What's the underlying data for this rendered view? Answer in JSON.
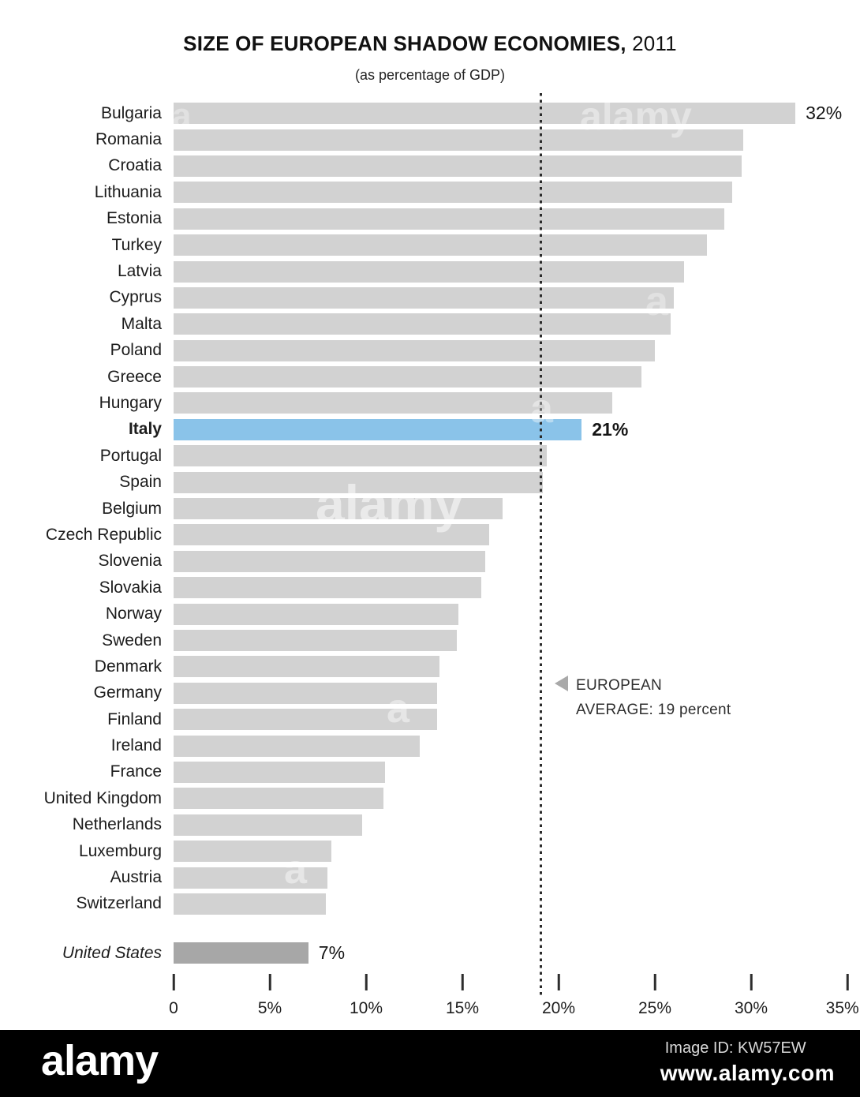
{
  "title": {
    "main": "SIZE OF EUROPEAN SHADOW ECONOMIES,",
    "year": " 2011",
    "subtitle": "(as percentage of GDP)"
  },
  "chart_data": {
    "type": "bar",
    "orientation": "horizontal",
    "title": "SIZE OF EUROPEAN SHADOW ECONOMIES, 2011",
    "subtitle": "(as percentage of GDP)",
    "xlabel": "percentage of GDP",
    "ylabel": "",
    "xlim": [
      0,
      35
    ],
    "grid": false,
    "legend": false,
    "x_ticks": [
      {
        "value": 0,
        "label": "0"
      },
      {
        "value": 5,
        "label": "5%"
      },
      {
        "value": 10,
        "label": "10%"
      },
      {
        "value": 15,
        "label": "15%"
      },
      {
        "value": 20,
        "label": "20%"
      },
      {
        "value": 25,
        "label": "25%"
      },
      {
        "value": 30,
        "label": "30%"
      },
      {
        "value": 35,
        "label": "35%"
      }
    ],
    "average_line": {
      "value": 19,
      "label_line1": "EUROPEAN",
      "label_line2": "AVERAGE: 19 percent"
    },
    "bars": [
      {
        "country": "Bulgaria",
        "value": 32.3,
        "label": "32%"
      },
      {
        "country": "Romania",
        "value": 29.6,
        "label": ""
      },
      {
        "country": "Croatia",
        "value": 29.5,
        "label": ""
      },
      {
        "country": "Lithuania",
        "value": 29.0,
        "label": ""
      },
      {
        "country": "Estonia",
        "value": 28.6,
        "label": ""
      },
      {
        "country": "Turkey",
        "value": 27.7,
        "label": ""
      },
      {
        "country": "Latvia",
        "value": 26.5,
        "label": ""
      },
      {
        "country": "Cyprus",
        "value": 26.0,
        "label": ""
      },
      {
        "country": "Malta",
        "value": 25.8,
        "label": ""
      },
      {
        "country": "Poland",
        "value": 25.0,
        "label": ""
      },
      {
        "country": "Greece",
        "value": 24.3,
        "label": ""
      },
      {
        "country": "Hungary",
        "value": 22.8,
        "label": ""
      },
      {
        "country": "Italy",
        "value": 21.2,
        "label": "21%",
        "highlight": true
      },
      {
        "country": "Portugal",
        "value": 19.4,
        "label": ""
      },
      {
        "country": "Spain",
        "value": 19.2,
        "label": ""
      },
      {
        "country": "Belgium",
        "value": 17.1,
        "label": ""
      },
      {
        "country": "Czech Republic",
        "value": 16.4,
        "label": ""
      },
      {
        "country": "Slovenia",
        "value": 16.2,
        "label": ""
      },
      {
        "country": "Slovakia",
        "value": 16.0,
        "label": ""
      },
      {
        "country": "Norway",
        "value": 14.8,
        "label": ""
      },
      {
        "country": "Sweden",
        "value": 14.7,
        "label": ""
      },
      {
        "country": "Denmark",
        "value": 13.8,
        "label": ""
      },
      {
        "country": "Germany",
        "value": 13.7,
        "label": ""
      },
      {
        "country": "Finland",
        "value": 13.7,
        "label": ""
      },
      {
        "country": "Ireland",
        "value": 12.8,
        "label": ""
      },
      {
        "country": "France",
        "value": 11.0,
        "label": ""
      },
      {
        "country": "United Kingdom",
        "value": 10.9,
        "label": ""
      },
      {
        "country": "Netherlands",
        "value": 9.8,
        "label": ""
      },
      {
        "country": "Luxemburg",
        "value": 8.2,
        "label": ""
      },
      {
        "country": "Austria",
        "value": 8.0,
        "label": ""
      },
      {
        "country": "Switzerland",
        "value": 7.9,
        "label": ""
      }
    ],
    "us_bar": {
      "country": "United States",
      "value": 7.0,
      "label": "7%"
    }
  },
  "colors": {
    "bar_default": "#d2d2d2",
    "bar_highlight": "#8ac3e9",
    "bar_us": "#a7a7a7",
    "text": "#1a1a1a",
    "average_marker": "#a9a9a9",
    "watermark_bar_bg": "#000000"
  },
  "watermark": {
    "brand": "alamy",
    "letter": "a",
    "image_id": "Image ID: KW57EW",
    "url": "www.alamy.com"
  }
}
